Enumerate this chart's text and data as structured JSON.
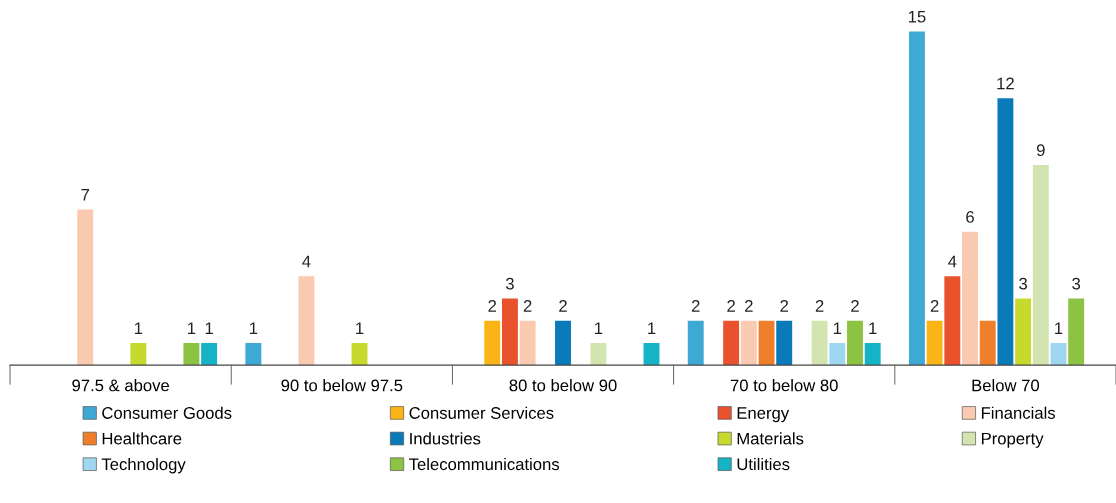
{
  "chart_data": {
    "type": "bar",
    "categories": [
      "97.5 & above",
      "90 to below 97.5",
      "80 to below 90",
      "70 to below 80",
      "Below 70"
    ],
    "series": [
      {
        "name": "Consumer Goods",
        "color": "#3fa9d5",
        "values": [
          null,
          1,
          null,
          2,
          15
        ],
        "value_labels": [
          null,
          "1",
          null,
          "2",
          "15"
        ]
      },
      {
        "name": "Consumer Services",
        "color": "#fbb416",
        "values": [
          null,
          null,
          2,
          null,
          2
        ],
        "value_labels": [
          null,
          null,
          "2",
          null,
          "2"
        ]
      },
      {
        "name": "Energy",
        "color": "#e8522d",
        "values": [
          null,
          null,
          3,
          2,
          4
        ],
        "value_labels": [
          null,
          null,
          "3",
          "2",
          "4"
        ]
      },
      {
        "name": "Financials",
        "color": "#f9c9b0",
        "values": [
          7,
          4,
          2,
          2,
          6
        ],
        "value_labels": [
          "7",
          "4",
          "2",
          "2",
          "6"
        ]
      },
      {
        "name": "Healthcare",
        "color": "#f07f2b",
        "values": [
          null,
          null,
          null,
          2,
          2
        ],
        "value_labels": [
          null,
          null,
          null,
          null,
          null
        ]
      },
      {
        "name": "Industries",
        "color": "#0a7ab8",
        "values": [
          null,
          null,
          2,
          2,
          12
        ],
        "value_labels": [
          null,
          null,
          "2",
          "2",
          "12"
        ]
      },
      {
        "name": "Materials",
        "color": "#c8d92e",
        "values": [
          1,
          1,
          null,
          null,
          3
        ],
        "value_labels": [
          "1",
          "1",
          null,
          null,
          "3"
        ]
      },
      {
        "name": "Property",
        "color": "#d2e4b0",
        "values": [
          null,
          null,
          1,
          2,
          9
        ],
        "value_labels": [
          null,
          null,
          "1",
          "2",
          "9"
        ]
      },
      {
        "name": "Technology",
        "color": "#9fd6f0",
        "values": [
          null,
          null,
          null,
          1,
          1
        ],
        "value_labels": [
          null,
          null,
          null,
          "1",
          "1"
        ]
      },
      {
        "name": "Telecommunications",
        "color": "#8cc342",
        "values": [
          1,
          null,
          null,
          2,
          3
        ],
        "value_labels": [
          "1",
          null,
          null,
          "2",
          "3"
        ]
      },
      {
        "name": "Utilities",
        "color": "#16b3c6",
        "values": [
          1,
          null,
          1,
          1,
          null
        ],
        "value_labels": [
          "1",
          null,
          "1",
          "1",
          null
        ]
      }
    ],
    "legend": "bottom",
    "grid": false
  }
}
